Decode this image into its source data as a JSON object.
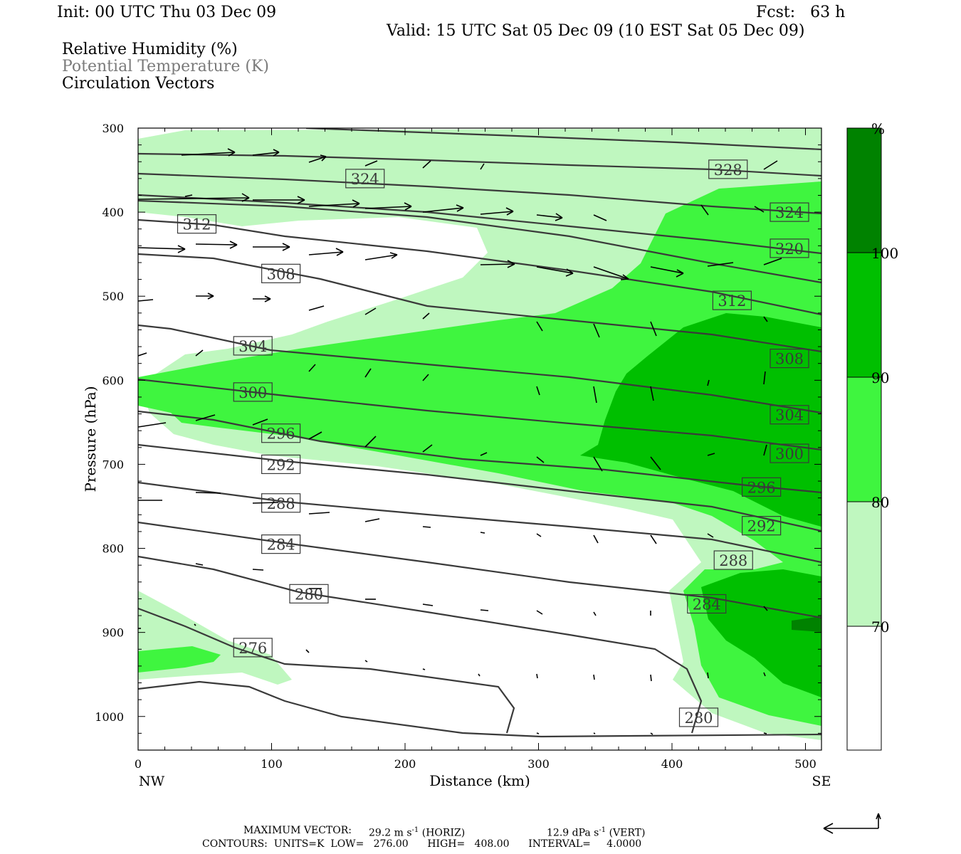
{
  "header": {
    "init": "Init: 00 UTC Thu 03 Dec 09",
    "fcst": "Fcst:   63 h",
    "valid": "Valid: 15 UTC Sat 05 Dec 09 (10 EST Sat 05 Dec 09)"
  },
  "legend_text": {
    "rh": "Relative Humidity (%)",
    "theta": "Potential Temperature (K)",
    "vectors": "Circulation Vectors"
  },
  "colors": {
    "rh_70_80": "#bff7bf",
    "rh_80_90": "#3ff53f",
    "rh_90_100": "#00bf00",
    "rh_100": "#008200",
    "contour": "#3a3a3a"
  },
  "chart_data": {
    "type": "cross-section",
    "xlabel": "Distance (km)",
    "ylabel": "Pressure (hPa)",
    "x_ticks": [
      0,
      100,
      200,
      300,
      400,
      500
    ],
    "y_ticks": [
      300,
      400,
      500,
      600,
      700,
      800,
      900,
      1000
    ],
    "xlim": [
      0,
      512
    ],
    "ylim": [
      1040,
      300
    ],
    "y_scale": "linear (inverted)",
    "endpoints": {
      "left": "NW",
      "right": "SE"
    },
    "colorbar": {
      "unit": "%",
      "levels": [
        70,
        80,
        90,
        100
      ]
    },
    "theta_contour_labels": [
      {
        "value": 328,
        "x": 442,
        "p": 349
      },
      {
        "value": 324,
        "x": 170,
        "p": 360
      },
      {
        "value": 324,
        "x": 488,
        "p": 400
      },
      {
        "value": 320,
        "x": 488,
        "p": 443
      },
      {
        "value": 312,
        "x": 44,
        "p": 414
      },
      {
        "value": 312,
        "x": 445,
        "p": 505
      },
      {
        "value": 308,
        "x": 107,
        "p": 473
      },
      {
        "value": 308,
        "x": 488,
        "p": 574
      },
      {
        "value": 304,
        "x": 86,
        "p": 559
      },
      {
        "value": 304,
        "x": 488,
        "p": 641
      },
      {
        "value": 300,
        "x": 86,
        "p": 614
      },
      {
        "value": 300,
        "x": 488,
        "p": 687
      },
      {
        "value": 296,
        "x": 107,
        "p": 663
      },
      {
        "value": 296,
        "x": 467,
        "p": 727
      },
      {
        "value": 292,
        "x": 107,
        "p": 700
      },
      {
        "value": 292,
        "x": 467,
        "p": 773
      },
      {
        "value": 288,
        "x": 107,
        "p": 746
      },
      {
        "value": 288,
        "x": 446,
        "p": 814
      },
      {
        "value": 284,
        "x": 107,
        "p": 795
      },
      {
        "value": 284,
        "x": 426,
        "p": 866
      },
      {
        "value": 280,
        "x": 128,
        "p": 854
      },
      {
        "value": 280,
        "x": 420,
        "p": 1001
      },
      {
        "value": 276,
        "x": 86,
        "p": 918
      }
    ]
  },
  "footer": {
    "max_vector_label": "MAXIMUM VECTOR:",
    "max_horiz": "29.2 m s",
    "horiz_tag": "(HORIZ)",
    "max_vert": "12.9 dPa s",
    "vert_tag": "(VERT)",
    "exp": "-1",
    "contours": "CONTOURS:  UNITS=K  LOW=   276.00      HIGH=   408.00      INTERVAL=     4.0000"
  }
}
